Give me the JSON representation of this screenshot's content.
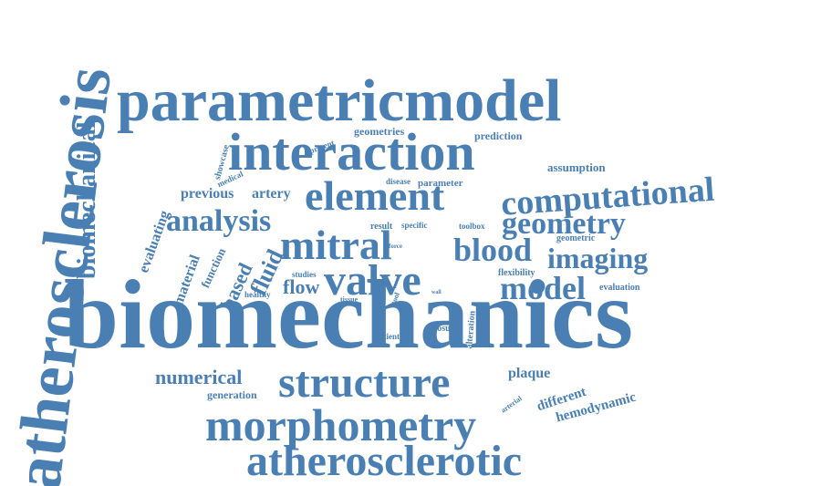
{
  "color": "#4a7fb3",
  "words": [
    {
      "text": "biomechanics"
    },
    {
      "text": "atherosclerosis"
    },
    {
      "text": "parametricmodel"
    },
    {
      "text": "interaction"
    },
    {
      "text": "element"
    },
    {
      "text": "computational"
    },
    {
      "text": "analysis"
    },
    {
      "text": "geometry"
    },
    {
      "text": "mitral"
    },
    {
      "text": "blood"
    },
    {
      "text": "imaging"
    },
    {
      "text": "valve"
    },
    {
      "text": "model"
    },
    {
      "text": "structure"
    },
    {
      "text": "morphometry"
    },
    {
      "text": "atherosclerotic"
    },
    {
      "text": "biomechanical"
    },
    {
      "text": "numerical"
    },
    {
      "text": "flow"
    },
    {
      "text": "fluid"
    },
    {
      "text": "based"
    },
    {
      "text": "previous"
    },
    {
      "text": "artery"
    },
    {
      "text": "evaluating"
    },
    {
      "text": "material"
    },
    {
      "text": "function"
    },
    {
      "text": "plaque"
    },
    {
      "text": "different"
    },
    {
      "text": "hemodynamic"
    },
    {
      "text": "geometries"
    },
    {
      "text": "prediction"
    },
    {
      "text": "assumption"
    },
    {
      "text": "parameter"
    },
    {
      "text": "showcase"
    },
    {
      "text": "present"
    },
    {
      "text": "medical"
    },
    {
      "text": "disease"
    },
    {
      "text": "result"
    },
    {
      "text": "specific"
    },
    {
      "text": "toolbox"
    },
    {
      "text": "geometric"
    },
    {
      "text": "flexibility"
    },
    {
      "text": "evaluation"
    },
    {
      "text": "studies"
    },
    {
      "text": "healthy"
    },
    {
      "text": "tissue"
    },
    {
      "text": "tool"
    },
    {
      "text": "wall"
    },
    {
      "text": "force"
    },
    {
      "text": "term"
    },
    {
      "text": "patient"
    },
    {
      "text": "closure"
    },
    {
      "text": "alteration"
    },
    {
      "text": "generation"
    },
    {
      "text": "arterial"
    }
  ]
}
